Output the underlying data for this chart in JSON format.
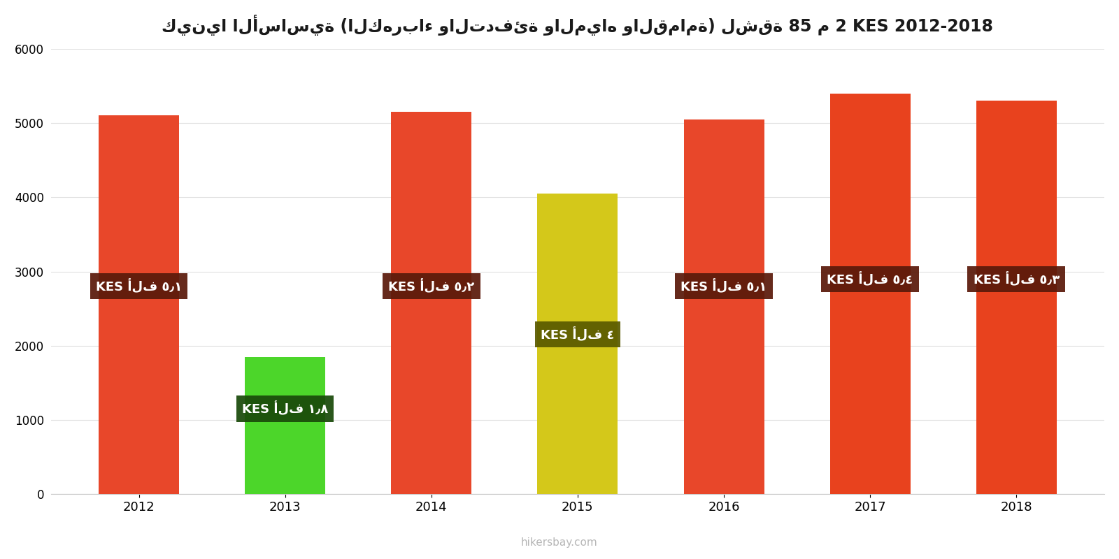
{
  "years": [
    2012,
    2013,
    2014,
    2015,
    2016,
    2017,
    2018
  ],
  "values": [
    5100,
    1850,
    5150,
    4050,
    5050,
    5400,
    5300
  ],
  "bar_colors": [
    "#e8472a",
    "#4cd62a",
    "#e8472a",
    "#d4c81a",
    "#e8472a",
    "#e8421e",
    "#e8421e"
  ],
  "label_texts": [
    "KES ألف ٥٫١",
    "KES ألف ١٫٨",
    "KES ألف ٥٫٢",
    "KES ألف ٤",
    "KES ألف ٥٫١",
    "KES ألف ٥٫٤",
    "KES ألف ٥٫٣"
  ],
  "label_bg_colors": [
    "#5a1a0a",
    "#1a4a0a",
    "#5a1a0a",
    "#5a5a00",
    "#5a1a0a",
    "#5a1a0a",
    "#5a1a0a"
  ],
  "label_y_positions": [
    2800,
    1150,
    2800,
    2150,
    2800,
    2900,
    2900
  ],
  "title": "كينيا الأساسية (الكهرباء والتدفئة والمياه والقمامة) لشقة 85 م 2 KES 2012-2018",
  "ylim": [
    0,
    6000
  ],
  "yticks": [
    0,
    1000,
    2000,
    3000,
    4000,
    5000,
    6000
  ],
  "watermark": "hikersbay.com",
  "bar_width": 0.55
}
